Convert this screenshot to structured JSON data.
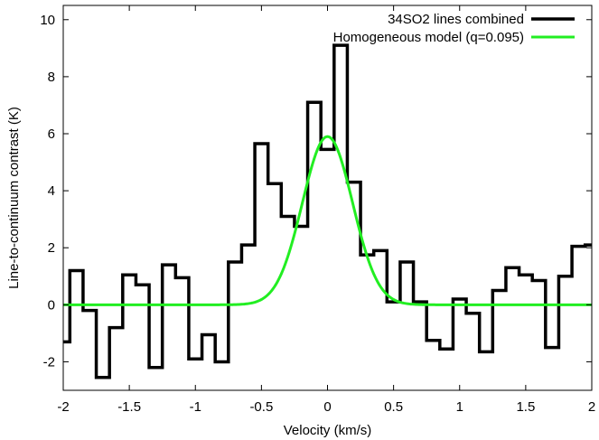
{
  "chart_data": {
    "type": "line",
    "xlabel": "Velocity (km/s)",
    "ylabel": "Line-to-continuum contrast (K)",
    "xlim": [
      -2,
      2
    ],
    "ylim": [
      -3,
      10.5
    ],
    "xticks": [
      -2,
      -1.5,
      -1,
      -0.5,
      0,
      0.5,
      1,
      1.5,
      2
    ],
    "yticks": [
      -2,
      0,
      2,
      4,
      6,
      8,
      10
    ],
    "xtick_labels": [
      "-2",
      "-1.5",
      "-1",
      "-0.5",
      "0",
      "0.5",
      "1",
      "1.5",
      "2"
    ],
    "ytick_labels": [
      "-2",
      "0",
      "2",
      "4",
      "6",
      "8",
      "10"
    ],
    "grid": false,
    "legend_position": "top-right",
    "series": [
      {
        "name": "34SO2 lines combined",
        "style": "steps",
        "color": "#000000",
        "x": [
          -2.0,
          -1.9,
          -1.8,
          -1.7,
          -1.6,
          -1.5,
          -1.4,
          -1.3,
          -1.2,
          -1.1,
          -1.0,
          -0.9,
          -0.8,
          -0.7,
          -0.6,
          -0.5,
          -0.4,
          -0.3,
          -0.2,
          -0.1,
          0.0,
          0.1,
          0.2,
          0.3,
          0.4,
          0.5,
          0.6,
          0.7,
          0.8,
          0.9,
          1.0,
          1.1,
          1.2,
          1.3,
          1.4,
          1.5,
          1.6,
          1.7,
          1.8,
          1.9,
          2.0
        ],
        "y": [
          -1.3,
          1.2,
          -0.2,
          -2.55,
          -0.8,
          1.05,
          0.7,
          -2.2,
          1.4,
          0.95,
          -1.9,
          -1.05,
          -2.0,
          1.5,
          2.1,
          5.65,
          4.25,
          3.1,
          2.75,
          7.1,
          5.45,
          9.1,
          4.3,
          1.75,
          1.9,
          0.1,
          1.5,
          0.1,
          -1.25,
          -1.55,
          0.2,
          -0.3,
          -1.65,
          0.5,
          1.3,
          1.05,
          0.85,
          -1.5,
          1.0,
          2.05,
          2.1
        ]
      },
      {
        "name": "Homogeneous model (q=0.095)",
        "style": "gaussian",
        "color": "#22ee22",
        "amplitude": 5.9,
        "center": 0.0,
        "sigma": 0.19
      }
    ]
  }
}
